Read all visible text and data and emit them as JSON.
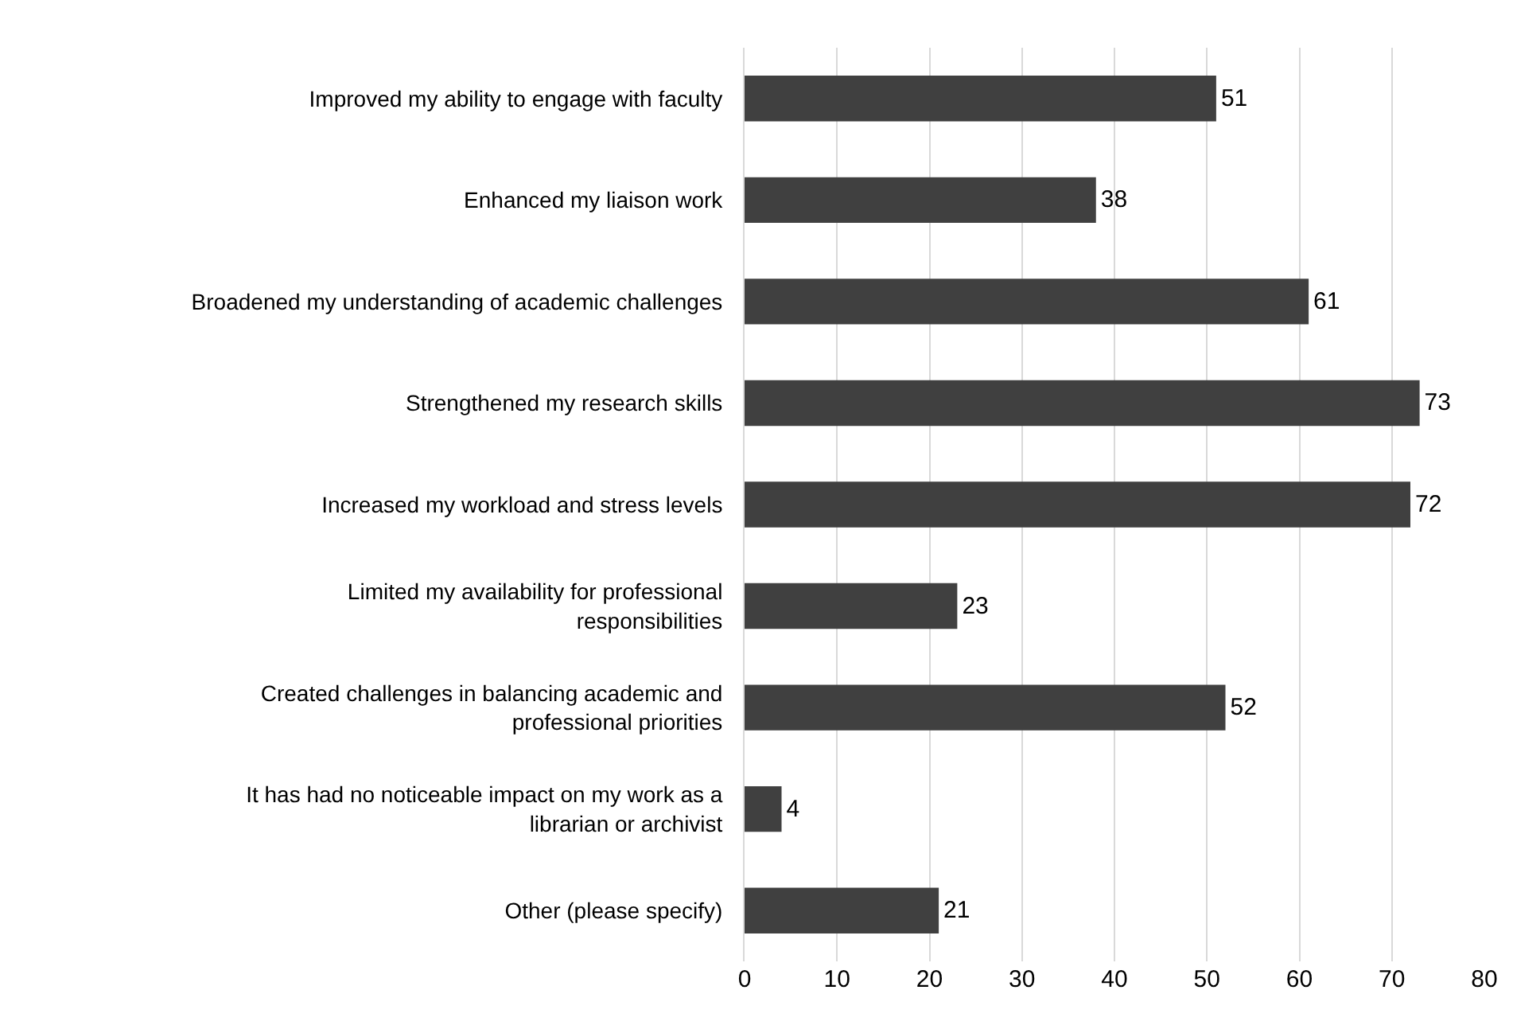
{
  "chart_data": {
    "type": "bar",
    "orientation": "horizontal",
    "categories": [
      "Improved my ability to engage with faculty",
      "Enhanced my liaison work",
      "Broadened my understanding of academic challenges",
      "Strengthened my research skills",
      "Increased my workload and stress levels",
      "Limited my availability for professional responsibilities",
      "Created challenges in balancing academic and professional priorities",
      "It has had no noticeable impact on my work as a librarian or archivist",
      "Other (please specify)"
    ],
    "values": [
      51,
      38,
      61,
      73,
      72,
      23,
      52,
      4,
      21
    ],
    "color": "#404040",
    "xlim": [
      0,
      80
    ],
    "xticks": [
      0,
      10,
      20,
      30,
      40,
      50,
      60,
      70,
      80
    ],
    "grid": "x",
    "data_labels": true
  }
}
